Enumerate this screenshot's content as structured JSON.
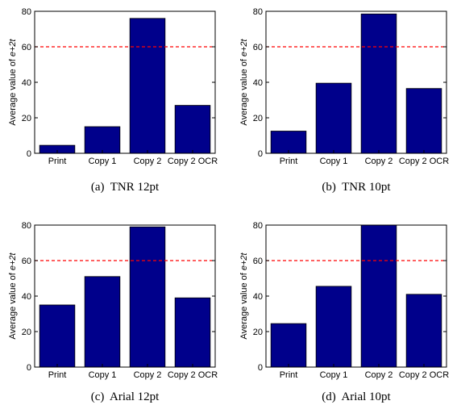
{
  "colors": {
    "bar": "#00008b",
    "bar_edge": "#000000",
    "threshold_line": "#ff0000"
  },
  "chart_data": [
    {
      "type": "bar",
      "caption": "(a)  TNR 12pt",
      "categories": [
        "Print",
        "Copy 1",
        "Copy 2",
        "Copy 2 OCR"
      ],
      "values": [
        4.5,
        15,
        76,
        27
      ],
      "ylabel": "Average value of e+2t",
      "ylabel_parts": {
        "prefix": "Average value of ",
        "italic": "e+2t"
      },
      "ylim": [
        0,
        80
      ],
      "yticks": [
        0,
        20,
        40,
        60,
        80
      ],
      "reference_line": 60,
      "grid": false
    },
    {
      "type": "bar",
      "caption": "(b)  TNR 10pt",
      "categories": [
        "Print",
        "Copy 1",
        "Copy 2",
        "Copy 2 OCR"
      ],
      "values": [
        12.5,
        39.5,
        78.5,
        36.5
      ],
      "ylabel": "Average value of e+2t",
      "ylabel_parts": {
        "prefix": "Average value of ",
        "italic": "e+2t"
      },
      "ylim": [
        0,
        80
      ],
      "yticks": [
        0,
        20,
        40,
        60,
        80
      ],
      "reference_line": 60,
      "grid": false
    },
    {
      "type": "bar",
      "caption": "(c)  Arial 12pt",
      "categories": [
        "Print",
        "Copy 1",
        "Copy 2",
        "Copy 2 OCR"
      ],
      "values": [
        35,
        51,
        79,
        39
      ],
      "ylabel": "Average value of e+2t",
      "ylabel_parts": {
        "prefix": "Average value of ",
        "italic": "e+2t"
      },
      "ylim": [
        0,
        80
      ],
      "yticks": [
        0,
        20,
        40,
        60,
        80
      ],
      "reference_line": 60,
      "grid": false
    },
    {
      "type": "bar",
      "caption": "(d)  Arial 10pt",
      "categories": [
        "Print",
        "Copy 1",
        "Copy 2",
        "Copy 2 OCR"
      ],
      "values": [
        24.5,
        45.5,
        80,
        41
      ],
      "ylabel": "Average value of e+2t",
      "ylabel_parts": {
        "prefix": "Average value of ",
        "italic": "e+2t"
      },
      "ylim": [
        0,
        80
      ],
      "yticks": [
        0,
        20,
        40,
        60,
        80
      ],
      "reference_line": 60,
      "grid": false
    }
  ]
}
